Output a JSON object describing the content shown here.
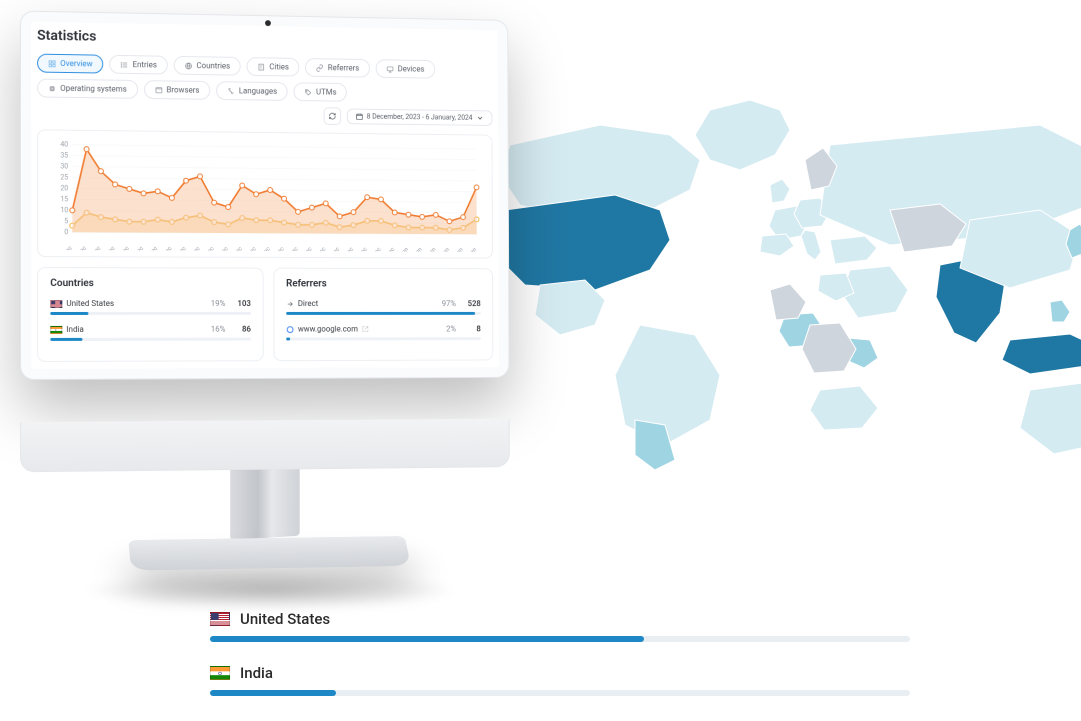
{
  "page_title": "Statistics",
  "colors": {
    "accent": "#2f8fe0",
    "bar_blue": "#1e88c7",
    "track": "#eef1f5",
    "border": "#e4e7ec",
    "text": "#3a3d42",
    "muted": "#8a8f98",
    "series_a_stroke": "#f07a2e",
    "series_a_fill": "#f8c9a5",
    "series_b_stroke": "#f3b33d",
    "series_b_fill": "#fbe3ad",
    "map_base": "#cfd5dd",
    "map_light": "#d5ebf2",
    "map_mid": "#9fd4e3",
    "map_dark": "#1f77a3"
  },
  "tabs": [
    {
      "id": "overview",
      "label": "Overview",
      "icon": "grid-icon",
      "active": true
    },
    {
      "id": "entries",
      "label": "Entries",
      "icon": "list-icon",
      "active": false
    },
    {
      "id": "countries",
      "label": "Countries",
      "icon": "globe-icon",
      "active": false
    },
    {
      "id": "cities",
      "label": "Cities",
      "icon": "building-icon",
      "active": false
    },
    {
      "id": "referrers",
      "label": "Referrers",
      "icon": "link-icon",
      "active": false
    },
    {
      "id": "devices",
      "label": "Devices",
      "icon": "device-icon",
      "active": false
    },
    {
      "id": "os",
      "label": "Operating systems",
      "icon": "cpu-icon",
      "active": false
    },
    {
      "id": "browsers",
      "label": "Browsers",
      "icon": "browser-icon",
      "active": false
    },
    {
      "id": "languages",
      "label": "Languages",
      "icon": "language-icon",
      "active": false
    },
    {
      "id": "utms",
      "label": "UTMs",
      "icon": "tag-icon",
      "active": false
    }
  ],
  "date_range": {
    "refresh_icon": "refresh-icon",
    "calendar_icon": "calendar-icon",
    "label": "8 December, 2023 - 6 January, 2024",
    "dropdown_icon": "chevron-down-icon"
  },
  "chart": {
    "type": "area",
    "ylim": [
      0,
      40
    ],
    "yticks": [
      0,
      5,
      10,
      15,
      20,
      25,
      30,
      35,
      40
    ],
    "ytick_fontsize": 7,
    "xlabels": [
      "8 Dec",
      "9 Dec",
      "10 Dec",
      "11 Dec",
      "12 Dec",
      "13 Dec",
      "14 Dec",
      "15 Dec",
      "16 Dec",
      "17 Dec",
      "18 Dec",
      "19 Dec",
      "20 Dec",
      "21 Dec",
      "22 Dec",
      "23 Dec",
      "24 Dec",
      "25 Dec",
      "26 Dec",
      "27 Dec",
      "28 Dec",
      "29 Dec",
      "30 Dec",
      "31 Dec",
      "1 Jan",
      "2 Jan",
      "3 Jan",
      "4 Jan",
      "5 Jan",
      "6 Jan"
    ],
    "xlabel_fontsize": 6,
    "grid_color": "#f1f3f6",
    "background_color": "#ffffff",
    "series": [
      {
        "name": "visits",
        "stroke": "#f07a2e",
        "fill": "#f8c9a5",
        "fill_opacity": 0.55,
        "marker": "circle",
        "marker_size": 2.5,
        "line_width": 1.6,
        "values": [
          10,
          38,
          28,
          22,
          20,
          18,
          19,
          16,
          24,
          26,
          14,
          12,
          22,
          18,
          20,
          16,
          10,
          12,
          14,
          8,
          10,
          17,
          16,
          10,
          9,
          8,
          9,
          6,
          8,
          22
        ]
      },
      {
        "name": "uniques",
        "stroke": "#f3b33d",
        "fill": "#fbe3ad",
        "fill_opacity": 0.55,
        "marker": "circle",
        "marker_size": 2.5,
        "line_width": 1.6,
        "values": [
          3,
          9,
          7,
          6,
          5,
          5,
          6,
          5,
          7,
          8,
          5,
          4,
          7,
          6,
          6,
          5,
          4,
          4,
          5,
          3,
          4,
          6,
          6,
          4,
          3,
          3,
          3,
          2,
          3,
          7
        ]
      }
    ]
  },
  "panels": {
    "countries": {
      "title": "Countries",
      "rows": [
        {
          "flag": "us",
          "label": "United States",
          "percent_label": "19%",
          "percent": 19,
          "value_label": "103",
          "bar_color": "#1e88c7"
        },
        {
          "flag": "in",
          "label": "India",
          "percent_label": "16%",
          "percent": 16,
          "value_label": "86",
          "bar_color": "#1e88c7"
        }
      ]
    },
    "referrers": {
      "title": "Referrers",
      "rows": [
        {
          "icon": "direct-icon",
          "label": "Direct",
          "percent_label": "97%",
          "percent": 97,
          "value_label": "528",
          "bar_color": "#1e88c7",
          "external": false
        },
        {
          "icon": "google-icon",
          "label": "www.google.com",
          "percent_label": "2%",
          "percent": 2,
          "value_label": "8",
          "bar_color": "#1e88c7",
          "external": true
        }
      ]
    }
  },
  "flat_list": {
    "rows": [
      {
        "flag": "us",
        "label": "United States",
        "percent": 62,
        "bar_color": "#1e88c7"
      },
      {
        "flag": "in",
        "label": "India",
        "percent": 18,
        "bar_color": "#1e88c7"
      }
    ]
  },
  "map": {
    "highlight_dark": [
      "united-states",
      "india",
      "indonesia"
    ],
    "highlight_mid": [
      "nigeria",
      "kenya",
      "argentina",
      "japan",
      "philippines"
    ],
    "highlight_light": [
      "canada",
      "brazil",
      "mexico",
      "uk",
      "germany",
      "france",
      "spain",
      "italy",
      "turkey",
      "egypt",
      "south-africa",
      "australia",
      "china",
      "russia",
      "saudi-arabia",
      "greenland"
    ]
  }
}
